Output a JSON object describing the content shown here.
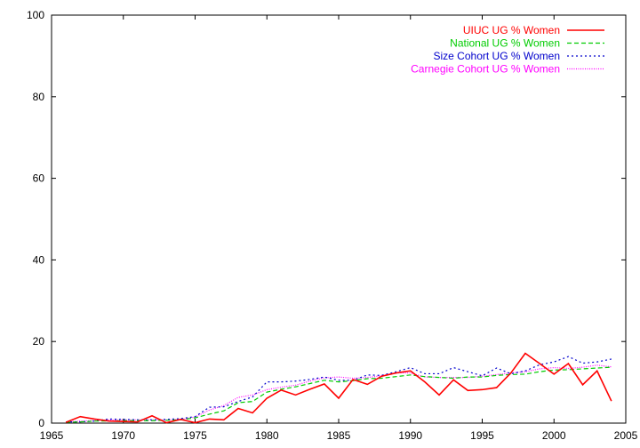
{
  "chart_data": {
    "type": "line",
    "title": "",
    "xlabel": "",
    "ylabel": "",
    "xlim": [
      1965,
      2005
    ],
    "ylim": [
      0,
      100
    ],
    "x_ticks": [
      1965,
      1970,
      1975,
      1980,
      1985,
      1990,
      1995,
      2000,
      2005
    ],
    "y_ticks": [
      0,
      20,
      40,
      60,
      80,
      100
    ],
    "grid": false,
    "legend_position": "top-right",
    "x": [
      1966,
      1967,
      1968,
      1969,
      1970,
      1971,
      1972,
      1973,
      1974,
      1975,
      1976,
      1977,
      1978,
      1979,
      1980,
      1981,
      1982,
      1983,
      1984,
      1985,
      1986,
      1987,
      1988,
      1989,
      1990,
      1991,
      1992,
      1993,
      1994,
      1995,
      1996,
      1997,
      1998,
      1999,
      2000,
      2001,
      2002,
      2003,
      2004
    ],
    "series": [
      {
        "name": "UIUC UG % Women",
        "color": "#ff0000",
        "dash": "solid",
        "values": [
          0.2,
          1.6,
          1.0,
          0.5,
          0.4,
          0.3,
          1.8,
          0.1,
          0.9,
          0.1,
          1.0,
          0.8,
          3.6,
          2.5,
          6.1,
          8.1,
          6.9,
          8.3,
          9.6,
          6.1,
          10.7,
          9.5,
          11.5,
          12.3,
          12.8,
          10.1,
          6.9,
          10.6,
          8.0,
          8.2,
          8.7,
          12.3,
          17.1,
          14.6,
          12.0,
          14.6,
          9.4,
          12.8,
          5.4
        ]
      },
      {
        "name": "National UG % Women",
        "color": "#00cc00",
        "dash": "dashed",
        "values": [
          0.2,
          0.3,
          0.5,
          0.5,
          0.6,
          0.6,
          0.6,
          0.7,
          0.8,
          1.3,
          2.2,
          3.0,
          5.0,
          5.3,
          7.6,
          8.3,
          8.9,
          9.7,
          10.5,
          10.1,
          10.4,
          10.9,
          11.0,
          11.4,
          11.8,
          11.4,
          11.2,
          11.0,
          11.3,
          11.3,
          11.7,
          11.9,
          12.0,
          12.6,
          13.0,
          13.1,
          13.3,
          13.5,
          13.7
        ]
      },
      {
        "name": "Size Cohort UG % Women",
        "color": "#0000cc",
        "dash": "dotted",
        "values": [
          0.3,
          0.3,
          0.5,
          1.0,
          0.9,
          0.8,
          0.8,
          0.9,
          1.1,
          1.6,
          3.9,
          4.0,
          5.3,
          6.4,
          10.1,
          10.1,
          10.3,
          10.7,
          11.3,
          10.5,
          10.5,
          11.8,
          11.7,
          12.6,
          13.6,
          12.1,
          12.1,
          13.6,
          12.6,
          11.6,
          13.5,
          12.1,
          12.8,
          14.3,
          15.0,
          16.3,
          14.7,
          15.0,
          15.7
        ]
      },
      {
        "name": "Carnegie Cohort UG % Women",
        "color": "#ff00ff",
        "dash": "finedotted",
        "values": [
          0.3,
          0.5,
          0.6,
          0.8,
          0.8,
          0.8,
          0.8,
          0.8,
          0.9,
          1.5,
          3.2,
          4.3,
          6.3,
          6.9,
          8.2,
          8.8,
          9.3,
          10.3,
          11.1,
          11.3,
          11.0,
          11.2,
          11.6,
          12.3,
          12.3,
          11.3,
          11.2,
          11.2,
          11.2,
          11.5,
          11.9,
          12.3,
          12.6,
          13.3,
          13.6,
          13.4,
          13.7,
          14.2,
          13.8
        ]
      }
    ]
  }
}
